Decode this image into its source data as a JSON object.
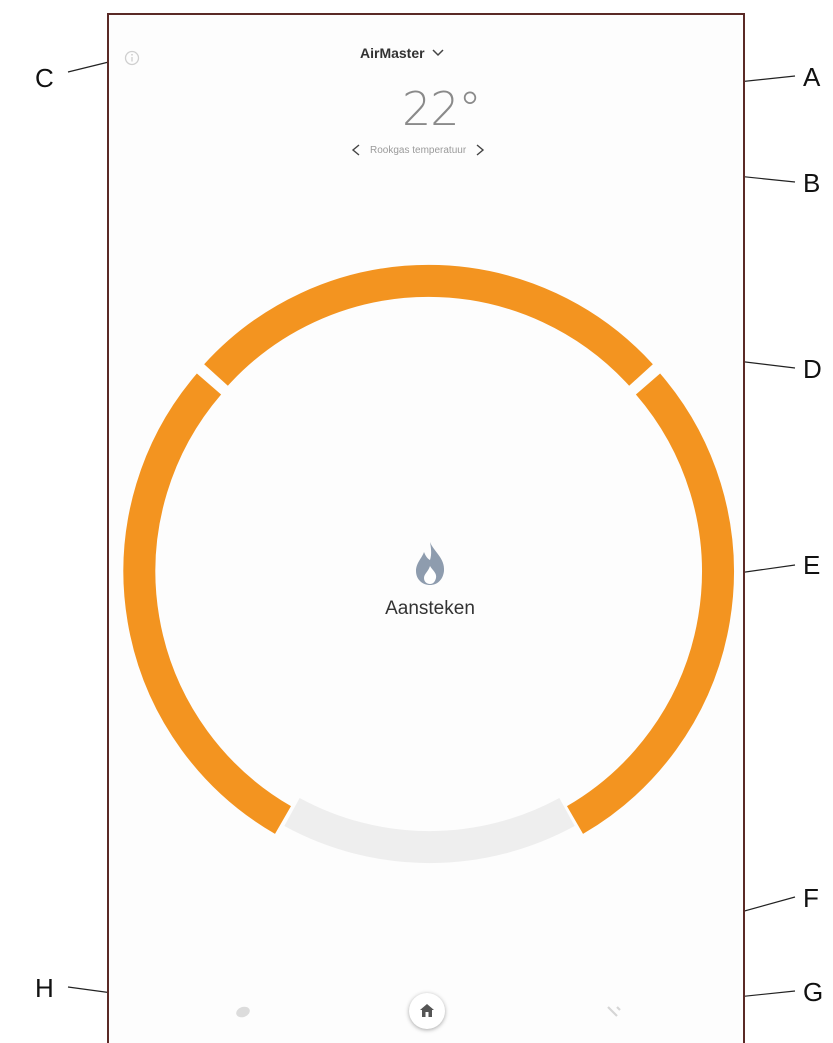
{
  "header": {
    "device_name": "AirMaster",
    "temperature": "22°",
    "sensor_label": "Rookgas temperatuur"
  },
  "status": {
    "label": "Aansteken"
  },
  "ring": {
    "color": "#f39420",
    "segments": 3
  },
  "callouts": {
    "a": "A",
    "b": "B",
    "c": "C",
    "d": "D",
    "e": "E",
    "f": "F",
    "g": "G",
    "h": "H"
  },
  "icons": {
    "info": "info-icon",
    "dropdown": "chevron-down-icon",
    "prev": "chevron-left-icon",
    "next": "chevron-right-icon",
    "flame": "flame-icon",
    "home": "home-icon",
    "left_nav": "leaf-icon",
    "right_nav": "settings-icon"
  }
}
